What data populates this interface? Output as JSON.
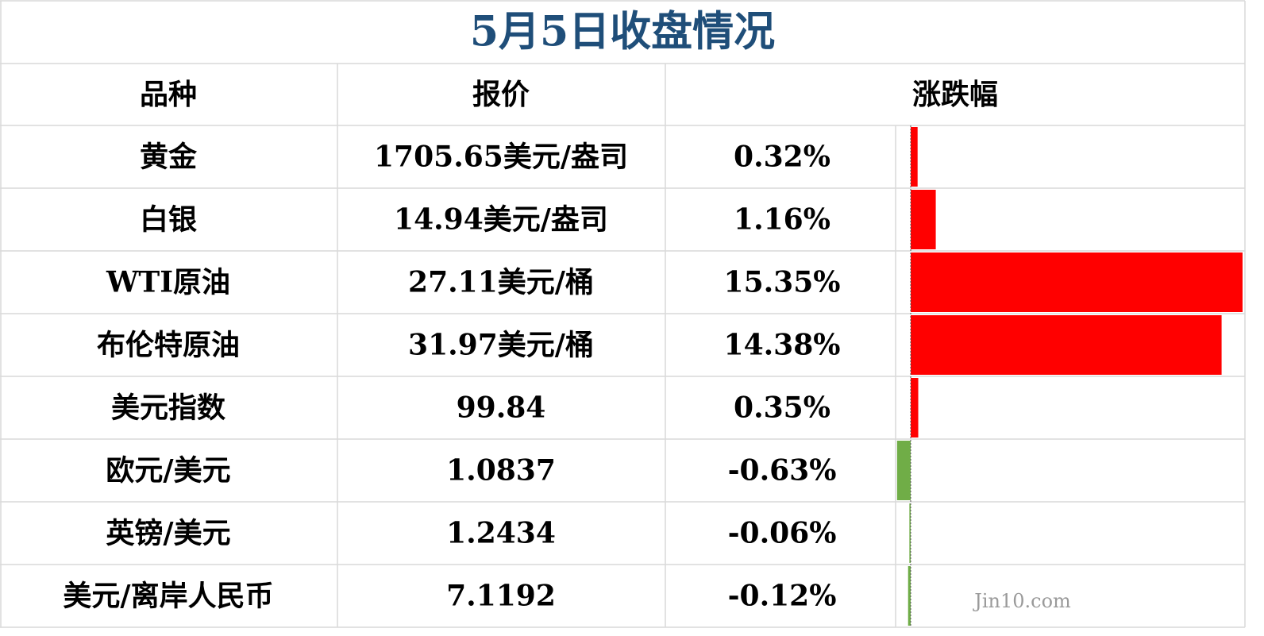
{
  "title": "5月5日收盘情况",
  "table": {
    "headers": [
      "品种",
      "报价",
      "涨跌幅"
    ],
    "rows": [
      {
        "name": "黄金",
        "price": "1705.65美元/盎司",
        "change": {
          "value": 0.32,
          "label": "0.32%"
        }
      },
      {
        "name": "白银",
        "price": "14.94美元/盎司",
        "change": {
          "value": 1.16,
          "label": "1.16%"
        }
      },
      {
        "name": "WTI原油",
        "price": "27.11美元/桶",
        "change": {
          "value": 15.35,
          "label": "15.35%"
        }
      },
      {
        "name": "布伦特原油",
        "price": "31.97美元/桶",
        "change": {
          "value": 14.38,
          "label": "14.38%"
        }
      },
      {
        "name": "美元指数",
        "price": "99.84",
        "change": {
          "value": 0.35,
          "label": "0.35%"
        }
      },
      {
        "name": "欧元/美元",
        "price": "1.0837",
        "change": {
          "value": -0.63,
          "label": "-0.63%"
        }
      },
      {
        "name": "英镑/美元",
        "price": "1.2434",
        "change": {
          "value": -0.06,
          "label": "-0.06%"
        }
      },
      {
        "name": "美元/离岸人民币",
        "price": "7.1192",
        "change": {
          "value": -0.12,
          "label": "-0.12%"
        }
      }
    ],
    "positive_color": "#ff0000",
    "negative_color": "#70ad47"
  },
  "watermark": "Jin10.com"
}
